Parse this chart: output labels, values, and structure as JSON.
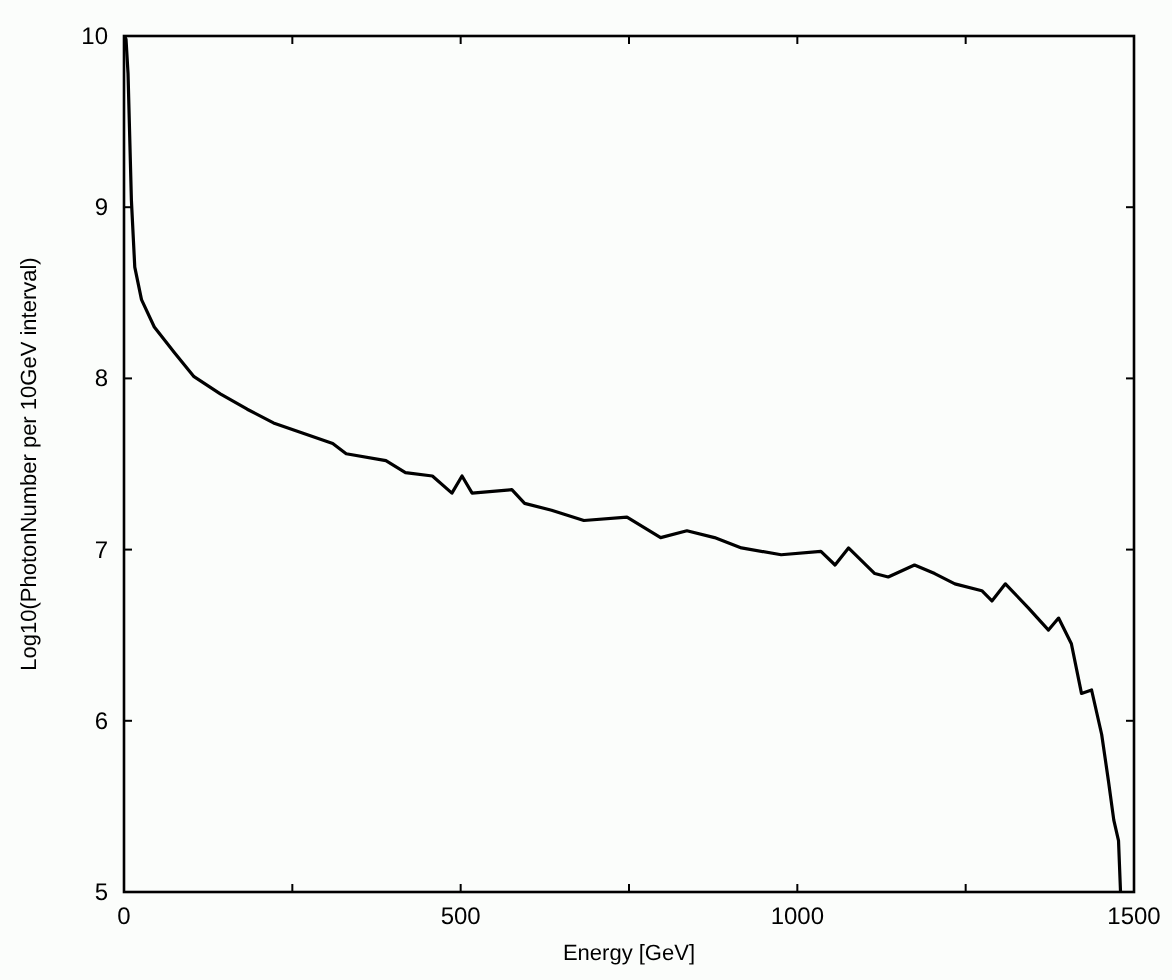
{
  "chart_data": {
    "type": "line",
    "xlabel": "Energy [GeV]",
    "ylabel": "Log10(PhotonNumber per 10GeV interval)",
    "xlim": [
      0,
      1500
    ],
    "ylim": [
      5,
      10
    ],
    "xticks": [
      0,
      {
        "value": 250,
        "label": null
      },
      500,
      {
        "value": 750,
        "label": null
      },
      1000,
      {
        "value": 1250,
        "label": null
      },
      1500
    ],
    "yticks": [
      5,
      6,
      7,
      8,
      9,
      10
    ],
    "series": [
      {
        "color": "#000000",
        "x": [
          1,
          3,
          6,
          11,
          16,
          26,
          45,
          75,
          104,
          143,
          183,
          222,
          266,
          310,
          330,
          389,
          418,
          458,
          487,
          502,
          517,
          576,
          595,
          635,
          683,
          747,
          797,
          836,
          877,
          917,
          976,
          1035,
          1056,
          1076,
          1115,
          1135,
          1174,
          1204,
          1234,
          1274,
          1289,
          1309,
          1343,
          1373,
          1388,
          1407,
          1422,
          1437,
          1452,
          1462,
          1470,
          1477,
          1480
        ],
        "values": [
          10,
          9.98,
          9.78,
          9.04,
          8.65,
          8.46,
          8.3,
          8.15,
          8.01,
          7.91,
          7.82,
          7.74,
          7.68,
          7.62,
          7.56,
          7.52,
          7.45,
          7.43,
          7.33,
          7.43,
          7.33,
          7.35,
          7.27,
          7.23,
          7.17,
          7.19,
          7.07,
          7.11,
          7.07,
          7.01,
          6.97,
          6.99,
          6.91,
          7.01,
          6.86,
          6.84,
          6.91,
          6.86,
          6.8,
          6.76,
          6.7,
          6.8,
          6.66,
          6.53,
          6.6,
          6.45,
          6.16,
          6.18,
          5.92,
          5.65,
          5.42,
          5.3,
          5
        ]
      }
    ]
  }
}
